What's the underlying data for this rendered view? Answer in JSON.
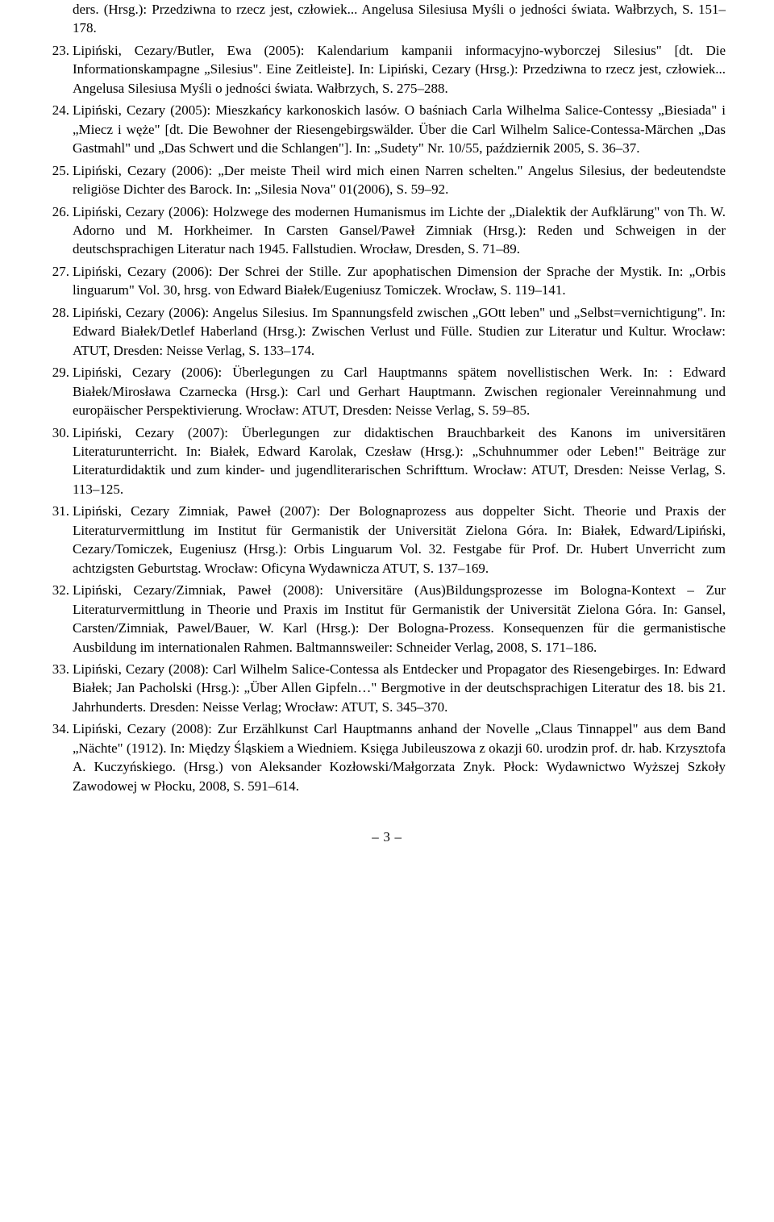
{
  "entries": [
    {
      "num": "",
      "cont": true,
      "text": "ders. (Hrsg.): Przedziwna to rzecz jest, człowiek... Angelusa Silesiusa Myśli o jedności świata. Wałbrzych, S. 151–178."
    },
    {
      "num": "23.",
      "text": "Lipiński, Cezary/Butler, Ewa (2005): Kalendarium kampanii informacyjno-wyborczej Silesius\" [dt. Die Informationskampagne „Silesius\". Eine Zeitleiste]. In: Lipiński, Cezary (Hrsg.): Przedziwna to rzecz jest, człowiek... Angelusa Silesiusa Myśli o jedności świata. Wałbrzych, S. 275–288."
    },
    {
      "num": "24.",
      "text": "Lipiński, Cezary (2005): Mieszkańcy karkonoskich lasów. O baśniach Carla Wilhelma Salice-Contessy „Biesiada\" i „Miecz i węże\" [dt. Die Bewohner der Riesengebirgswälder. Über die Carl Wilhelm Salice-Contessa-Märchen „Das Gastmahl\" und „Das Schwert und die Schlangen\"]. In: „Sudety\" Nr. 10/55, październik 2005, S. 36–37."
    },
    {
      "num": "25.",
      "text": "Lipiński, Cezary (2006): „Der meiste Theil wird mich einen Narren schelten.\" Angelus Silesius, der bedeutendste religiöse Dichter des Barock. In: „Silesia Nova\" 01(2006), S. 59–92."
    },
    {
      "num": "26.",
      "text": "Lipiński, Cezary (2006): Holzwege des modernen Humanismus im Lichte der „Dialektik der Aufklärung\" von Th. W. Adorno und M. Horkheimer. In Carsten Gansel/Paweł Zimniak (Hrsg.): Reden und Schweigen in der deutschsprachigen Literatur nach 1945. Fallstudien. Wrocław, Dresden, S. 71–89."
    },
    {
      "num": "27.",
      "text": "Lipiński, Cezary (2006): Der Schrei der Stille. Zur apophatischen Dimension der Sprache der Mystik. In: „Orbis linguarum\" Vol. 30, hrsg. von Edward Białek/Eugeniusz Tomiczek. Wrocław, S. 119–141."
    },
    {
      "num": "28.",
      "text": "Lipiński, Cezary (2006): Angelus Silesius. Im Spannungsfeld zwischen „GOtt leben\" und „Selbst=vernichtigung\". In: Edward Białek/Detlef Haberland (Hrsg.): Zwischen Verlust und Fülle. Studien zur Literatur und Kultur. Wrocław: ATUT, Dresden: Neisse Verlag, S. 133–174."
    },
    {
      "num": "29.",
      "text": "Lipiński, Cezary (2006): Überlegungen zu Carl Hauptmanns spätem novellistischen Werk. In: : Edward Białek/Mirosława Czarnecka (Hrsg.): Carl und Gerhart Hauptmann. Zwischen regionaler Vereinnahmung und europäischer Perspektivierung. Wrocław: ATUT, Dresden: Neisse Verlag, S. 59–85."
    },
    {
      "num": "30.",
      "text": "Lipiński, Cezary (2007): Überlegungen zur didaktischen Brauchbarkeit des Kanons im universitären Literaturunterricht. In: Białek, Edward Karolak, Czesław (Hrsg.): „Schuhnummer oder Leben!\" Beiträge zur Literaturdidaktik und zum kinder- und jugendliterarischen Schrifttum. Wrocław: ATUT, Dresden: Neisse Verlag, S. 113–125."
    },
    {
      "num": "31.",
      "text": "Lipiński, Cezary Zimniak, Paweł (2007): Der Bolognaprozess aus doppelter Sicht. Theorie und Praxis der Literaturvermittlung im Institut für Germanistik der Universität Zielona Góra. In: Białek, Edward/Lipiński, Cezary/Tomiczek, Eugeniusz (Hrsg.): Orbis Linguarum Vol. 32. Festgabe für Prof. Dr. Hubert Unverricht zum achtzigsten Geburtstag. Wrocław: Oficyna Wydawnicza ATUT, S. 137–169."
    },
    {
      "num": "32.",
      "text": "Lipiński, Cezary/Zimniak, Paweł (2008): Universitäre (Aus)Bildungsprozesse im Bologna-Kontext – Zur Literaturvermittlung in Theorie und Praxis im Institut für Germanistik der Universität Zielona Góra. In: Gansel, Carsten/Zimniak, Pawel/Bauer, W. Karl (Hrsg.): Der Bologna-Prozess. Konsequenzen für die germanistische Ausbildung im internationalen Rahmen. Baltmannsweiler: Schneider Verlag, 2008, S. 171–186."
    },
    {
      "num": "33.",
      "text": "Lipiński, Cezary (2008): Carl Wilhelm Salice-Contessa als Entdecker und Propagator des Riesengebirges. In: Edward Białek; Jan Pacholski (Hrsg.): „Über Allen Gipfeln…\" Bergmotive in der deutschsprachigen Literatur des 18. bis 21. Jahrhunderts. Dresden: Neisse Verlag; Wrocław: ATUT, S. 345–370."
    },
    {
      "num": "34.",
      "text": "Lipiński, Cezary (2008): Zur Erzählkunst Carl Hauptmanns anhand der Novelle „Claus Tinnappel\" aus dem Band „Nächte\" (1912). In: Między Śląskiem a Wiedniem. Księga Jubileuszowa z okazji 60. urodzin prof. dr. hab. Krzysztofa A. Kuczyńskiego. (Hrsg.) von Aleksander Kozłowski/Małgorzata Znyk. Płock: Wydawnictwo Wyższej Szkoły Zawodowej w Płocku, 2008, S. 591–614."
    }
  ],
  "footer": "– 3 –"
}
